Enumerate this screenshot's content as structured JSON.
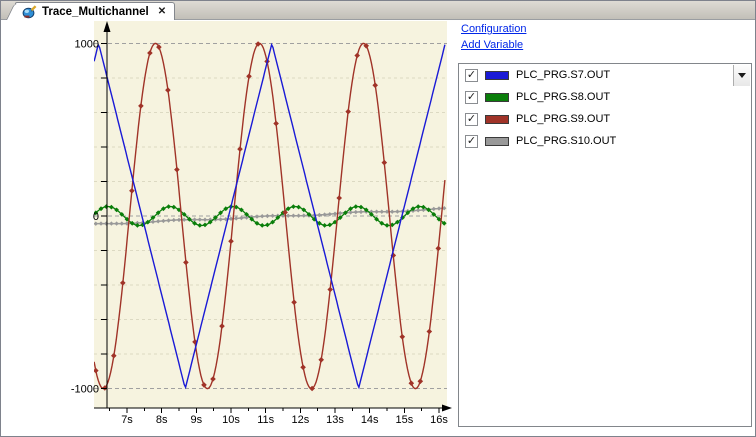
{
  "tab": {
    "label": "Trace_Multichannel",
    "close": "✕"
  },
  "panel": {
    "links": [
      {
        "label": "Configuration"
      },
      {
        "label": "Add Variable"
      }
    ],
    "check_glyph": "✓",
    "variables": [
      {
        "label": "PLC_PRG.S7.OUT",
        "color": "#1a1ad6",
        "checked": true
      },
      {
        "label": "PLC_PRG.S8.OUT",
        "color": "#0a7e0a",
        "checked": true
      },
      {
        "label": "PLC_PRG.S9.OUT",
        "color": "#a03328",
        "checked": true
      },
      {
        "label": "PLC_PRG.S10.OUT",
        "color": "#999999",
        "checked": true
      }
    ]
  },
  "chart_data": {
    "type": "line",
    "title": "",
    "xlabel": "",
    "ylabel": "",
    "background": "#f6f3df",
    "grid_major_color": "#a0a0a0",
    "grid_minor_color": "#dcd9c2",
    "axis_color": "#000000",
    "x_range": [
      6.05,
      16.2
    ],
    "ylim": [
      -1130,
      1130
    ],
    "x_ticks": [
      7,
      8,
      9,
      10,
      11,
      12,
      13,
      14,
      15,
      16
    ],
    "x_tick_labels": [
      "7s",
      "8s",
      "9s",
      "10s",
      "11s",
      "12s",
      "13s",
      "14s",
      "15s",
      "16s"
    ],
    "x_minor_step": 0.5,
    "y_grid_major": [
      1000,
      0,
      -1000
    ],
    "y_grid_minor": [
      800,
      600,
      400,
      200,
      -200,
      -400,
      -600,
      -800
    ],
    "y_label_values": [
      1000,
      0,
      -1000
    ],
    "y_tick_labels": [
      "1000",
      "0",
      "-1000"
    ],
    "legend_position": "right-panel",
    "sample_times": [
      7,
      8,
      9,
      10,
      11,
      12,
      13,
      14,
      15,
      16
    ],
    "series": [
      {
        "name": "PLC_PRG.S7.OUT",
        "color": "#1a1ad6",
        "waveform": "triangle",
        "amplitude": 1000,
        "period_s": 5,
        "peak_at_s": 11.18,
        "line_width": 1.4,
        "marker": "none",
        "samples": [
          344,
          -456,
          -744,
          56,
          856,
          344,
          -456,
          -744,
          56,
          856
        ]
      },
      {
        "name": "PLC_PRG.S8.OUT",
        "color": "#0a7e0a",
        "waveform": "sine",
        "amplitude": 55,
        "period_s": 1.8,
        "peak_at_s": 8.25,
        "line_width": 1.3,
        "marker": "diamond",
        "marker_size": 2.4,
        "marker_every_s": 0.15,
        "samples": [
          -19,
          35,
          -48,
          54,
          -54,
          48,
          -35,
          19,
          0,
          -19
        ]
      },
      {
        "name": "PLC_PRG.S9.OUT",
        "color": "#a03328",
        "waveform": "sine",
        "amplitude": 1000,
        "period_s": 3,
        "peak_at_s": 10.82,
        "line_width": 1.4,
        "marker": "diamond",
        "marker_size": 2.8,
        "marker_every_s": 0.26,
        "samples": [
          -146,
          930,
          -783,
          -146,
          930,
          -783,
          -146,
          930,
          -783,
          -146
        ]
      },
      {
        "name": "PLC_PRG.S10.OUT",
        "color": "#999999",
        "waveform": "linear",
        "offset": -45,
        "slope": 8.85,
        "ref_s": 6.4,
        "wobble_amplitude": 4,
        "wobble_period_s": 2.6,
        "line_width": 1.5,
        "marker": "diamond",
        "marker_size": 2.2,
        "marker_every_s": 0.15,
        "samples": [
          -40,
          -31,
          -22,
          -13,
          -4,
          5,
          13,
          22,
          31,
          40
        ]
      }
    ]
  }
}
